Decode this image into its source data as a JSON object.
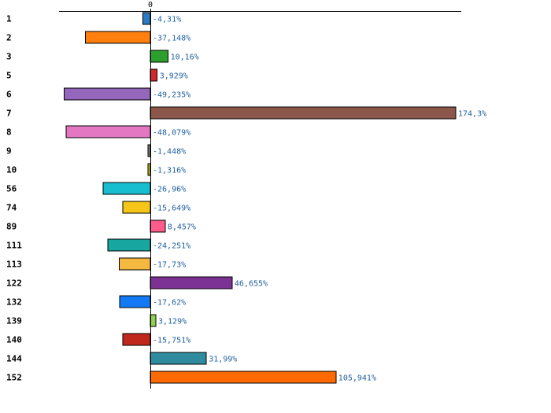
{
  "chart_data": {
    "type": "bar",
    "orientation": "horizontal",
    "title": "",
    "xlabel": "",
    "ylabel": "",
    "zero_tick_label": "0",
    "grid": false,
    "categories": [
      "1",
      "2",
      "3",
      "5",
      "6",
      "7",
      "8",
      "9",
      "10",
      "56",
      "74",
      "89",
      "111",
      "113",
      "122",
      "132",
      "139",
      "140",
      "144",
      "152"
    ],
    "values": [
      -4.31,
      -37.148,
      10.16,
      3.929,
      -49.235,
      174.3,
      -48.079,
      -1.448,
      -1.316,
      -26.96,
      -15.649,
      8.457,
      -24.251,
      -17.73,
      46.655,
      -17.62,
      3.129,
      -15.751,
      31.99,
      105.941
    ],
    "value_labels": [
      "-4,31%",
      "-37,148%",
      "10,16%",
      "3,929%",
      "-49,235%",
      "174,3%",
      "-48,079%",
      "-1,448%",
      "-1,316%",
      "-26,96%",
      "-15,649%",
      "8,457%",
      "-24,251%",
      "-17,73%",
      "46,655%",
      "-17,62%",
      "3,129%",
      "-15,751%",
      "31,99%",
      "105,941%"
    ],
    "colors": [
      "#2b7bc0",
      "#ff7f0e",
      "#2ca02c",
      "#d62728",
      "#9467bd",
      "#8c564b",
      "#e377c2",
      "#7f7f7f",
      "#bcbd22",
      "#17becf",
      "#f5c518",
      "#ff5c8d",
      "#17a6a0",
      "#f5b840",
      "#7b3294",
      "#1479f5",
      "#8ed14a",
      "#c0281e",
      "#2e8c9e",
      "#ff6a00"
    ],
    "xlim": [
      -52,
      176
    ]
  }
}
